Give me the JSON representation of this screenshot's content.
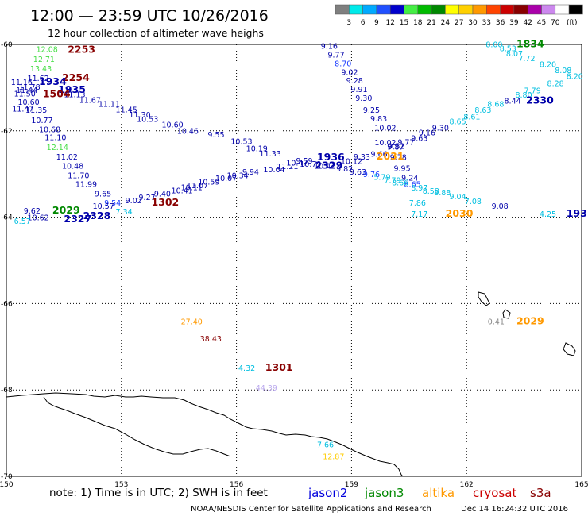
{
  "header": {
    "title": "12:00 — 23:59 UTC 10/26/2016",
    "subtitle": "12 hour collection of altimeter wave heighs"
  },
  "scale": {
    "unit": "(ft)",
    "bins": [
      {
        "label": "",
        "color": "#7f7f7f"
      },
      {
        "label": "3",
        "color": "#00eaea"
      },
      {
        "label": "6",
        "color": "#00aaff"
      },
      {
        "label": "9",
        "color": "#2050ff"
      },
      {
        "label": "12",
        "color": "#0000cc"
      },
      {
        "label": "15",
        "color": "#44ee44"
      },
      {
        "label": "18",
        "color": "#00bb00"
      },
      {
        "label": "21",
        "color": "#008800"
      },
      {
        "label": "24",
        "color": "#ffff00"
      },
      {
        "label": "27",
        "color": "#ffd000"
      },
      {
        "label": "30",
        "color": "#ff9900"
      },
      {
        "label": "33",
        "color": "#ff4400"
      },
      {
        "label": "36",
        "color": "#cc0000"
      },
      {
        "label": "39",
        "color": "#880000"
      },
      {
        "label": "42",
        "color": "#aa00aa"
      },
      {
        "label": "45",
        "color": "#cc88ee"
      },
      {
        "label": "70",
        "color": "#ffffff"
      },
      {
        "label": "",
        "color": "#000000"
      }
    ]
  },
  "axes": {
    "lon_ticks": [
      "150",
      "153",
      "156",
      "159",
      "162",
      "165"
    ],
    "lat_ticks": [
      "-60",
      "-62",
      "-64",
      "-66",
      "-68",
      "-70"
    ]
  },
  "footer": {
    "note": "note: 1) Time is in UTC; 2) SWH is in feet",
    "credit": "NOAA/NESDIS Center for Satellite Applications and Research",
    "timestamp": "Dec 14 16:24:32 UTC 2016",
    "missions": [
      {
        "name": "jason2",
        "color": "#0000dd"
      },
      {
        "name": "jason3",
        "color": "#008800"
      },
      {
        "name": "altika",
        "color": "#ff9900"
      },
      {
        "name": "cryosat",
        "color": "#cc0000"
      },
      {
        "name": "s3a",
        "color": "#880000"
      }
    ]
  },
  "colors": {
    "c_lt": "#00bfe0",
    "c_md": "#1a3cff",
    "c_dk": "#0000aa",
    "c_gr": "#44dd44",
    "c_grd": "#008800",
    "c_or": "#ff9900",
    "c_red": "#880000",
    "c_gry": "#888888",
    "c_lav": "#bbaaee",
    "c_yel": "#ffcc00"
  },
  "map_labels": [
    {
      "t": "9.16",
      "c": "c_dk",
      "lat": -60.03,
      "lon": 158.2
    },
    {
      "t": "9.77",
      "c": "c_dk",
      "lat": -60.23,
      "lon": 158.38
    },
    {
      "t": "8.70",
      "c": "c_md",
      "lat": -60.43,
      "lon": 158.56
    },
    {
      "t": "9.02",
      "c": "c_dk",
      "lat": -60.63,
      "lon": 158.73
    },
    {
      "t": "9.28",
      "c": "c_dk",
      "lat": -60.83,
      "lon": 158.86
    },
    {
      "t": "9.91",
      "c": "c_dk",
      "lat": -61.03,
      "lon": 158.98
    },
    {
      "t": "9.30",
      "c": "c_dk",
      "lat": -61.23,
      "lon": 159.1
    },
    {
      "t": "9.25",
      "c": "c_dk",
      "lat": -61.51,
      "lon": 159.3
    },
    {
      "t": "9.83",
      "c": "c_dk",
      "lat": -61.71,
      "lon": 159.49
    },
    {
      "t": "10.02",
      "c": "c_dk",
      "lat": -61.92,
      "lon": 159.6
    },
    {
      "t": "10.02",
      "c": "c_dk",
      "lat": -62.26,
      "lon": 159.6
    },
    {
      "t": "9.52",
      "c": "c_dk",
      "lat": -62.34,
      "lon": 159.95
    },
    {
      "t": "9.78",
      "c": "c_dk",
      "lat": -62.6,
      "lon": 160.0
    },
    {
      "t": "9.95",
      "c": "c_dk",
      "lat": -62.86,
      "lon": 160.1
    },
    {
      "t": "9.24",
      "c": "c_dk",
      "lat": -63.08,
      "lon": 160.3
    },
    {
      "t": "8.65",
      "c": "c_md",
      "lat": -63.23,
      "lon": 160.37
    },
    {
      "t": "7.86",
      "c": "c_lt",
      "lat": -63.66,
      "lon": 160.5
    },
    {
      "t": "7.17",
      "c": "c_lt",
      "lat": -63.92,
      "lon": 160.55
    },
    {
      "t": "2030",
      "c": "c_or",
      "lat": -63.92,
      "lon": 161.45,
      "time": true
    },
    {
      "t": "8.00",
      "c": "c_lt",
      "lat": -59.99,
      "lon": 162.5
    },
    {
      "t": "1834",
      "c": "c_grd",
      "lat": -59.99,
      "lon": 163.3,
      "time": true
    },
    {
      "t": "8.53",
      "c": "c_lt",
      "lat": -60.08,
      "lon": 162.86
    },
    {
      "t": "8.07",
      "c": "c_lt",
      "lat": -60.2,
      "lon": 163.03
    },
    {
      "t": "7.72",
      "c": "c_lt",
      "lat": -60.31,
      "lon": 163.35
    },
    {
      "t": "8.20",
      "c": "c_lt",
      "lat": -60.45,
      "lon": 163.9
    },
    {
      "t": "8.08",
      "c": "c_lt",
      "lat": -60.59,
      "lon": 164.3
    },
    {
      "t": "8.20",
      "c": "c_lt",
      "lat": -60.73,
      "lon": 164.6
    },
    {
      "t": "8.28",
      "c": "c_lt",
      "lat": -60.89,
      "lon": 164.1
    },
    {
      "t": "7.79",
      "c": "c_lt",
      "lat": -61.06,
      "lon": 163.5
    },
    {
      "t": "8.80",
      "c": "c_lt",
      "lat": -61.16,
      "lon": 163.27
    },
    {
      "t": "8.44",
      "c": "c_dk",
      "lat": -61.3,
      "lon": 162.98
    },
    {
      "t": "2330",
      "c": "c_dk",
      "lat": -61.3,
      "lon": 163.55,
      "time": true
    },
    {
      "t": "8.68",
      "c": "c_lt",
      "lat": -61.37,
      "lon": 162.54
    },
    {
      "t": "8.63",
      "c": "c_lt",
      "lat": -61.51,
      "lon": 162.21
    },
    {
      "t": "8.61",
      "c": "c_lt",
      "lat": -61.66,
      "lon": 161.92
    },
    {
      "t": "8.65",
      "c": "c_lt",
      "lat": -61.77,
      "lon": 161.55
    },
    {
      "t": "9.30",
      "c": "c_dk",
      "lat": -61.92,
      "lon": 161.1
    },
    {
      "t": "9.16",
      "c": "c_dk",
      "lat": -62.03,
      "lon": 160.75
    },
    {
      "t": "9.63",
      "c": "c_dk",
      "lat": -62.16,
      "lon": 160.55
    },
    {
      "t": "9.77",
      "c": "c_dk",
      "lat": -62.25,
      "lon": 160.2
    },
    {
      "t": "9.87",
      "c": "c_dk",
      "lat": -62.36,
      "lon": 159.93
    },
    {
      "t": "9.66",
      "c": "c_dk",
      "lat": -62.53,
      "lon": 159.5
    },
    {
      "t": "9.33",
      "c": "c_dk",
      "lat": -62.59,
      "lon": 159.05
    },
    {
      "t": "2031",
      "c": "c_or",
      "lat": -62.59,
      "lon": 159.65,
      "time": true
    },
    {
      "t": "10.12",
      "c": "c_dk",
      "lat": -62.69,
      "lon": 158.72
    },
    {
      "t": "10.42",
      "c": "c_dk",
      "lat": -62.8,
      "lon": 158.02
    },
    {
      "t": "9.59",
      "c": "c_dk",
      "lat": -62.68,
      "lon": 157.55
    },
    {
      "t": "1936",
      "c": "c_dk",
      "lat": -62.61,
      "lon": 158.1,
      "time": true
    },
    {
      "t": "11.33",
      "c": "c_dk",
      "lat": -62.52,
      "lon": 156.6
    },
    {
      "t": "10.19",
      "c": "c_dk",
      "lat": -62.4,
      "lon": 156.25
    },
    {
      "t": "10.53",
      "c": "c_dk",
      "lat": -62.23,
      "lon": 155.85
    },
    {
      "t": "9.55",
      "c": "c_dk",
      "lat": -62.08,
      "lon": 155.25
    },
    {
      "t": "10.46",
      "c": "c_dk",
      "lat": -61.99,
      "lon": 154.45
    },
    {
      "t": "10.60",
      "c": "c_dk",
      "lat": -61.85,
      "lon": 154.05
    },
    {
      "t": "10.53",
      "c": "c_dk",
      "lat": -61.72,
      "lon": 153.4
    },
    {
      "t": "11.30",
      "c": "c_dk",
      "lat": -61.62,
      "lon": 153.2
    },
    {
      "t": "11.45",
      "c": "c_dk",
      "lat": -61.5,
      "lon": 152.85
    },
    {
      "t": "11.11",
      "c": "c_dk",
      "lat": -61.37,
      "lon": 152.4
    },
    {
      "t": "11.67",
      "c": "c_dk",
      "lat": -61.28,
      "lon": 151.9
    },
    {
      "t": "11.13",
      "c": "c_dk",
      "lat": -61.15,
      "lon": 151.5
    },
    {
      "t": "12.08",
      "c": "c_gr",
      "lat": -60.1,
      "lon": 150.78
    },
    {
      "t": "2253",
      "c": "c_red",
      "lat": -60.12,
      "lon": 151.6,
      "time": true
    },
    {
      "t": "12.71",
      "c": "c_gr",
      "lat": -60.33,
      "lon": 150.7
    },
    {
      "t": "13.43",
      "c": "c_gr",
      "lat": -60.55,
      "lon": 150.62
    },
    {
      "t": "11.62",
      "c": "c_dk",
      "lat": -60.77,
      "lon": 150.55
    },
    {
      "t": "2254",
      "c": "c_red",
      "lat": -60.77,
      "lon": 151.45,
      "time": true
    },
    {
      "t": "11.16",
      "c": "c_dk",
      "lat": -60.86,
      "lon": 150.12
    },
    {
      "t": "1934",
      "c": "c_dk",
      "lat": -60.86,
      "lon": 150.85,
      "time": true
    },
    {
      "t": "11.78",
      "c": "c_dk",
      "lat": -60.97,
      "lon": 150.32
    },
    {
      "t": "11.44",
      "c": "c_dk",
      "lat": -61.05,
      "lon": 150.25
    },
    {
      "t": "1935",
      "c": "c_dk",
      "lat": -61.05,
      "lon": 151.35,
      "time": true
    },
    {
      "t": "11.50",
      "c": "c_dk",
      "lat": -61.13,
      "lon": 150.2
    },
    {
      "t": "1504",
      "c": "c_red",
      "lat": -61.15,
      "lon": 150.95,
      "time": true
    },
    {
      "t": "10.60",
      "c": "c_dk",
      "lat": -61.32,
      "lon": 150.3
    },
    {
      "t": "11.47",
      "c": "c_dk",
      "lat": -61.48,
      "lon": 150.15
    },
    {
      "t": "11.35",
      "c": "c_dk",
      "lat": -61.51,
      "lon": 150.5
    },
    {
      "t": "10.77",
      "c": "c_dk",
      "lat": -61.75,
      "lon": 150.65
    },
    {
      "t": "10.68",
      "c": "c_dk",
      "lat": -61.96,
      "lon": 150.85
    },
    {
      "t": "11.10",
      "c": "c_dk",
      "lat": -62.14,
      "lon": 151.0
    },
    {
      "t": "12.14",
      "c": "c_gr",
      "lat": -62.37,
      "lon": 151.05
    },
    {
      "t": "11.02",
      "c": "c_dk",
      "lat": -62.59,
      "lon": 151.3
    },
    {
      "t": "10.48",
      "c": "c_dk",
      "lat": -62.8,
      "lon": 151.45
    },
    {
      "t": "11.70",
      "c": "c_dk",
      "lat": -63.02,
      "lon": 151.6
    },
    {
      "t": "11.99",
      "c": "c_dk",
      "lat": -63.23,
      "lon": 151.8
    },
    {
      "t": "9.65",
      "c": "c_dk",
      "lat": -63.45,
      "lon": 152.3
    },
    {
      "t": "9.54",
      "c": "c_md",
      "lat": -63.66,
      "lon": 152.55
    },
    {
      "t": "10.57",
      "c": "c_dk",
      "lat": -63.73,
      "lon": 152.25
    },
    {
      "t": "7.34",
      "c": "c_lt",
      "lat": -63.86,
      "lon": 152.85
    },
    {
      "t": "9.62",
      "c": "c_dk",
      "lat": -63.84,
      "lon": 150.45
    },
    {
      "t": "2029",
      "c": "c_grd",
      "lat": -63.84,
      "lon": 151.2,
      "time": true
    },
    {
      "t": "10.62",
      "c": "c_dk",
      "lat": -64.0,
      "lon": 150.55
    },
    {
      "t": "2328",
      "c": "c_dk",
      "lat": -63.97,
      "lon": 152.0,
      "time": true
    },
    {
      "t": "2327",
      "c": "c_dk",
      "lat": -64.04,
      "lon": 151.5,
      "time": true
    },
    {
      "t": "6.57",
      "c": "c_lt",
      "lat": -64.08,
      "lon": 150.2
    },
    {
      "t": "9.02",
      "c": "c_dk",
      "lat": -63.6,
      "lon": 153.1
    },
    {
      "t": "1302",
      "c": "c_red",
      "lat": -63.66,
      "lon": 153.78,
      "time": true
    },
    {
      "t": "9.27",
      "c": "c_dk",
      "lat": -63.53,
      "lon": 153.45
    },
    {
      "t": "9.40",
      "c": "c_dk",
      "lat": -63.45,
      "lon": 153.85
    },
    {
      "t": "10.41",
      "c": "c_dk",
      "lat": -63.37,
      "lon": 154.3
    },
    {
      "t": "10.11",
      "c": "c_dk",
      "lat": -63.3,
      "lon": 154.55
    },
    {
      "t": "11.07",
      "c": "c_dk",
      "lat": -63.25,
      "lon": 154.7
    },
    {
      "t": "10.59",
      "c": "c_dk",
      "lat": -63.17,
      "lon": 155.0
    },
    {
      "t": "10.07",
      "c": "c_dk",
      "lat": -63.09,
      "lon": 155.45
    },
    {
      "t": "10.34",
      "c": "c_dk",
      "lat": -63.02,
      "lon": 155.75
    },
    {
      "t": "9.94",
      "c": "c_dk",
      "lat": -62.94,
      "lon": 156.15
    },
    {
      "t": "10.64",
      "c": "c_dk",
      "lat": -62.89,
      "lon": 156.7
    },
    {
      "t": "11.21",
      "c": "c_dk",
      "lat": -62.81,
      "lon": 157.05
    },
    {
      "t": "10.47",
      "c": "c_dk",
      "lat": -62.73,
      "lon": 157.3
    },
    {
      "t": "10.79",
      "c": "c_dk",
      "lat": -62.76,
      "lon": 157.65
    },
    {
      "t": "2329",
      "c": "c_dk",
      "lat": -62.8,
      "lon": 158.05,
      "time": true
    },
    {
      "t": "9.82",
      "c": "c_dk",
      "lat": -62.87,
      "lon": 158.6
    },
    {
      "t": "9.63",
      "c": "c_dk",
      "lat": -62.94,
      "lon": 158.95
    },
    {
      "t": "9.76",
      "c": "c_md",
      "lat": -63.0,
      "lon": 159.3
    },
    {
      "t": "5.79",
      "c": "c_lt",
      "lat": -63.06,
      "lon": 159.58
    },
    {
      "t": "7.79",
      "c": "c_lt",
      "lat": -63.13,
      "lon": 159.85
    },
    {
      "t": "8.66",
      "c": "c_lt",
      "lat": -63.19,
      "lon": 160.05
    },
    {
      "t": "8.97",
      "c": "c_lt",
      "lat": -63.31,
      "lon": 160.55
    },
    {
      "t": "8.58",
      "c": "c_lt",
      "lat": -63.38,
      "lon": 160.85
    },
    {
      "t": "8.88",
      "c": "c_lt",
      "lat": -63.42,
      "lon": 161.15
    },
    {
      "t": "9.04",
      "c": "c_lt",
      "lat": -63.51,
      "lon": 161.55
    },
    {
      "t": "7.08",
      "c": "c_lt",
      "lat": -63.62,
      "lon": 161.95
    },
    {
      "t": "9.08",
      "c": "c_dk",
      "lat": -63.73,
      "lon": 162.65
    },
    {
      "t": "4.25",
      "c": "c_lt",
      "lat": -63.92,
      "lon": 163.9
    },
    {
      "t": "193",
      "c": "c_dk",
      "lat": -63.92,
      "lon": 164.6,
      "time": true
    },
    {
      "t": "27.40",
      "c": "c_or",
      "lat": -66.41,
      "lon": 154.55
    },
    {
      "t": "38.43",
      "c": "c_red",
      "lat": -66.8,
      "lon": 155.05
    },
    {
      "t": "4.32",
      "c": "c_lt",
      "lat": -67.48,
      "lon": 156.05
    },
    {
      "t": "1301",
      "c": "c_red",
      "lat": -67.48,
      "lon": 156.75,
      "time": true
    },
    {
      "t": "44.39",
      "c": "c_lav",
      "lat": -67.94,
      "lon": 156.5
    },
    {
      "t": "0.41",
      "c": "c_gry",
      "lat": -66.41,
      "lon": 162.55
    },
    {
      "t": "2029",
      "c": "c_or",
      "lat": -66.41,
      "lon": 163.3,
      "time": true
    },
    {
      "t": "7.66",
      "c": "c_lt",
      "lat": -69.26,
      "lon": 158.1
    },
    {
      "t": "12.87",
      "c": "c_yel",
      "lat": -69.53,
      "lon": 158.25
    }
  ]
}
